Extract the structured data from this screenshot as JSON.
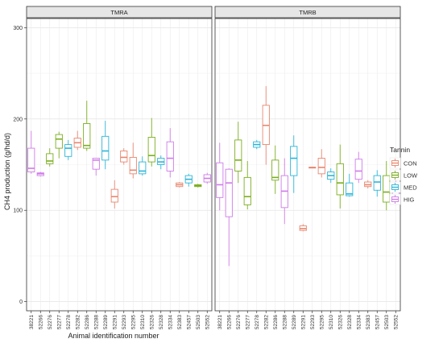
{
  "chart_data": {
    "type": "boxplot",
    "xlabel": "Animal identification number",
    "ylabel": "CH4 production (g/hd/d)",
    "ylim": [
      -10,
      310
    ],
    "yticks": [
      0,
      100,
      200,
      300
    ],
    "grid": true,
    "legend_position": "right",
    "legend": {
      "title": "Tannin",
      "entries": [
        {
          "label": "CON",
          "color": "#E8866F"
        },
        {
          "label": "LOW",
          "color": "#7BAE1F"
        },
        {
          "label": "MED",
          "color": "#2BB5D8"
        },
        {
          "label": "HIG",
          "color": "#CF7BE8"
        }
      ]
    },
    "panels": [
      {
        "title": "TMRA",
        "boxes": [
          {
            "id": "38221",
            "group": "HIG",
            "min": 140,
            "q1": 142,
            "median": 146,
            "q3": 168,
            "max": 187
          },
          {
            "id": "52266",
            "group": "HIG",
            "min": 137,
            "q1": 138,
            "median": 140,
            "q3": 141,
            "max": 142
          },
          {
            "id": "52276",
            "group": "LOW",
            "min": 148,
            "q1": 151,
            "median": 154,
            "q3": 162,
            "max": 168
          },
          {
            "id": "52277",
            "group": "LOW",
            "min": 157,
            "q1": 168,
            "median": 178,
            "q3": 183,
            "max": 186
          },
          {
            "id": "52278",
            "group": "MED",
            "min": 155,
            "q1": 159,
            "median": 168,
            "q3": 172,
            "max": 177
          },
          {
            "id": "52282",
            "group": "CON",
            "min": 166,
            "q1": 169,
            "median": 174,
            "q3": 179,
            "max": 187
          },
          {
            "id": "52286",
            "group": "LOW",
            "min": 165,
            "q1": 168,
            "median": 171,
            "q3": 195,
            "max": 220
          },
          {
            "id": "52288",
            "group": "HIG",
            "min": 138,
            "q1": 145,
            "median": 155,
            "q3": 157,
            "max": 157
          },
          {
            "id": "52289",
            "group": "MED",
            "min": 145,
            "q1": 155,
            "median": 165,
            "q3": 181,
            "max": 198
          },
          {
            "id": "52291",
            "group": "CON",
            "min": 102,
            "q1": 109,
            "median": 115,
            "q3": 123,
            "max": 133
          },
          {
            "id": "52293",
            "group": "CON",
            "min": 150,
            "q1": 153,
            "median": 158,
            "q3": 165,
            "max": 168
          },
          {
            "id": "52295",
            "group": "CON",
            "min": 135,
            "q1": 140,
            "median": 144,
            "q3": 158,
            "max": 174
          },
          {
            "id": "52310",
            "group": "MED",
            "min": 138,
            "q1": 140,
            "median": 143,
            "q3": 153,
            "max": 159
          },
          {
            "id": "52326",
            "group": "LOW",
            "min": 148,
            "q1": 153,
            "median": 160,
            "q3": 180,
            "max": 201
          },
          {
            "id": "52328",
            "group": "MED",
            "min": 145,
            "q1": 150,
            "median": 153,
            "q3": 157,
            "max": 160
          },
          {
            "id": "52334",
            "group": "HIG",
            "min": 136,
            "q1": 143,
            "median": 157,
            "q3": 175,
            "max": 190
          },
          {
            "id": "52383",
            "group": "CON",
            "min": 125,
            "q1": 126,
            "median": 128,
            "q3": 130,
            "max": 131
          },
          {
            "id": "52457",
            "group": "MED",
            "min": 126,
            "q1": 130,
            "median": 134,
            "q3": 138,
            "max": 140
          },
          {
            "id": "52503",
            "group": "LOW",
            "min": 125,
            "q1": 126,
            "median": 127,
            "q3": 128,
            "max": 129
          },
          {
            "id": "52552",
            "group": "HIG",
            "min": 129,
            "q1": 131,
            "median": 135,
            "q3": 139,
            "max": 141
          }
        ]
      },
      {
        "title": "TMRB",
        "boxes": [
          {
            "id": "38221",
            "group": "HIG",
            "min": 100,
            "q1": 114,
            "median": 128,
            "q3": 152,
            "max": 174
          },
          {
            "id": "52266",
            "group": "HIG",
            "min": 39,
            "q1": 93,
            "median": 130,
            "q3": 145,
            "max": 146
          },
          {
            "id": "52276",
            "group": "LOW",
            "min": 130,
            "q1": 143,
            "median": 155,
            "q3": 177,
            "max": 197
          },
          {
            "id": "52277",
            "group": "LOW",
            "min": 101,
            "q1": 106,
            "median": 115,
            "q3": 136,
            "max": 154
          },
          {
            "id": "52278",
            "group": "MED",
            "min": 167,
            "q1": 169,
            "median": 172,
            "q3": 175,
            "max": 177
          },
          {
            "id": "52282",
            "group": "CON",
            "min": 150,
            "q1": 172,
            "median": 193,
            "q3": 215,
            "max": 236
          },
          {
            "id": "52286",
            "group": "LOW",
            "min": 118,
            "q1": 133,
            "median": 136,
            "q3": 155,
            "max": 171
          },
          {
            "id": "52288",
            "group": "HIG",
            "min": 85,
            "q1": 103,
            "median": 121,
            "q3": 138,
            "max": 157
          },
          {
            "id": "52289",
            "group": "MED",
            "min": 119,
            "q1": 138,
            "median": 157,
            "q3": 170,
            "max": 182
          },
          {
            "id": "52291",
            "group": "CON",
            "min": 77,
            "q1": 78,
            "median": 80,
            "q3": 83,
            "max": 85
          },
          {
            "id": "52293",
            "group": "CON",
            "min": 147,
            "q1": 147,
            "median": 147,
            "q3": 147,
            "max": 147
          },
          {
            "id": "52295",
            "group": "CON",
            "min": 136,
            "q1": 140,
            "median": 147,
            "q3": 157,
            "max": 167
          },
          {
            "id": "52310",
            "group": "MED",
            "min": 130,
            "q1": 134,
            "median": 138,
            "q3": 142,
            "max": 146
          },
          {
            "id": "52326",
            "group": "LOW",
            "min": 102,
            "q1": 117,
            "median": 130,
            "q3": 151,
            "max": 172
          },
          {
            "id": "52328",
            "group": "MED",
            "min": 115,
            "q1": 116,
            "median": 118,
            "q3": 130,
            "max": 140
          },
          {
            "id": "52334",
            "group": "HIG",
            "min": 130,
            "q1": 134,
            "median": 143,
            "q3": 156,
            "max": 164
          },
          {
            "id": "52383",
            "group": "CON",
            "min": 124,
            "q1": 126,
            "median": 128,
            "q3": 131,
            "max": 133
          },
          {
            "id": "52457",
            "group": "MED",
            "min": 115,
            "q1": 122,
            "median": 131,
            "q3": 138,
            "max": 144
          },
          {
            "id": "52503",
            "group": "LOW",
            "min": 100,
            "q1": 109,
            "median": 120,
            "q3": 138,
            "max": 154
          },
          {
            "id": "52552",
            "group": "HIG",
            "min": 107,
            "q1": 116,
            "median": 125,
            "q3": 129,
            "max": 134
          }
        ]
      }
    ]
  }
}
